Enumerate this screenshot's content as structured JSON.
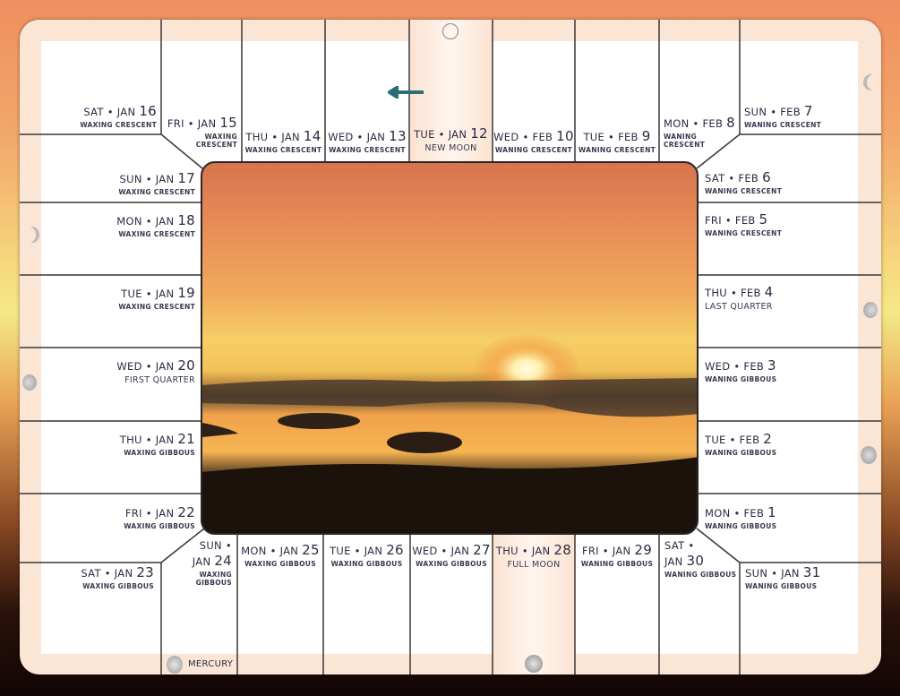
{
  "colors": {
    "accent_arrow": "#2a6e78",
    "text": "#2d2b45",
    "board": "#fbe6d6"
  },
  "cells": [
    {
      "day": "SAT",
      "month": "JAN",
      "date": "16",
      "phase": "WAXING CRESCENT"
    },
    {
      "day": "FRI",
      "month": "JAN",
      "date": "15",
      "phase": "WAXING\nCRESCENT"
    },
    {
      "day": "THU",
      "month": "JAN",
      "date": "14",
      "phase": "WAXING CRESCENT"
    },
    {
      "day": "WED",
      "month": "JAN",
      "date": "13",
      "phase": "WAXING CRESCENT"
    },
    {
      "day": "TUE",
      "month": "JAN",
      "date": "12",
      "phase": "NEW MOON"
    },
    {
      "day": "WED",
      "month": "FEB",
      "date": "10",
      "phase": "WANING CRESCENT"
    },
    {
      "day": "TUE",
      "month": "FEB",
      "date": "9",
      "phase": "WANING CRESCENT"
    },
    {
      "day": "MON",
      "month": "FEB",
      "date": "8",
      "phase": "WANING\nCRESCENT"
    },
    {
      "day": "SUN",
      "month": "FEB",
      "date": "7",
      "phase": "WANING CRESCENT"
    },
    {
      "day": "SUN",
      "month": "JAN",
      "date": "17",
      "phase": "WAXING CRESCENT"
    },
    {
      "day": "MON",
      "month": "JAN",
      "date": "18",
      "phase": "WAXING CRESCENT"
    },
    {
      "day": "TUE",
      "month": "JAN",
      "date": "19",
      "phase": "WAXING CRESCENT"
    },
    {
      "day": "WED",
      "month": "JAN",
      "date": "20",
      "phase": "FIRST QUARTER"
    },
    {
      "day": "THU",
      "month": "JAN",
      "date": "21",
      "phase": "WAXING GIBBOUS"
    },
    {
      "day": "FRI",
      "month": "JAN",
      "date": "22",
      "phase": "WAXING GIBBOUS"
    },
    {
      "day": "SAT",
      "month": "JAN",
      "date": "23",
      "phase": "WAXING GIBBOUS"
    },
    {
      "day": "SAT",
      "month": "FEB",
      "date": "6",
      "phase": "WANING CRESCENT"
    },
    {
      "day": "FRI",
      "month": "FEB",
      "date": "5",
      "phase": "WANING CRESCENT"
    },
    {
      "day": "THU",
      "month": "FEB",
      "date": "4",
      "phase": "LAST QUARTER"
    },
    {
      "day": "WED",
      "month": "FEB",
      "date": "3",
      "phase": "WANING GIBBOUS"
    },
    {
      "day": "TUE",
      "month": "FEB",
      "date": "2",
      "phase": "WANING GIBBOUS"
    },
    {
      "day": "MON",
      "month": "FEB",
      "date": "1",
      "phase": "WANING GIBBOUS"
    },
    {
      "day": "SUN",
      "month": "JAN",
      "date": "31",
      "phase": "WANING GIBBOUS"
    },
    {
      "day": "SUN",
      "month": "JAN",
      "date": "24",
      "phase": "WAXING GIBBOUS"
    },
    {
      "day": "MON",
      "month": "JAN",
      "date": "25",
      "phase": "WAXING GIBBOUS"
    },
    {
      "day": "TUE",
      "month": "JAN",
      "date": "26",
      "phase": "WAXING GIBBOUS"
    },
    {
      "day": "WED",
      "month": "JAN",
      "date": "27",
      "phase": "WAXING GIBBOUS"
    },
    {
      "day": "THU",
      "month": "JAN",
      "date": "28",
      "phase": "FULL MOON"
    },
    {
      "day": "FRI",
      "month": "JAN",
      "date": "29",
      "phase": "WANING GIBBOUS"
    },
    {
      "day": "SAT",
      "month": "JAN",
      "date": "30",
      "phase": "WANING GIBBOUS"
    }
  ],
  "planet": {
    "label": "MERCURY",
    "icon": "mercury-icon"
  },
  "arrow": {
    "icon": "arrow-left-icon"
  }
}
